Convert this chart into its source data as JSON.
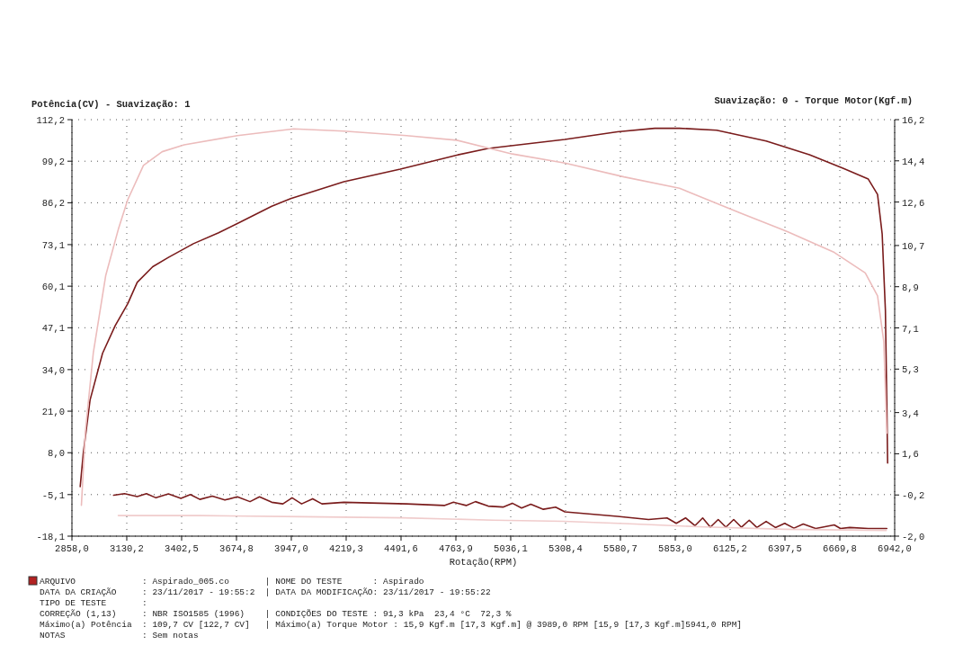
{
  "chart_data": {
    "type": "line",
    "ylabel": "Potência(CV) - Suavização: 1",
    "y2label": "Suavização: 0 - Torque Motor(Kgf.m)",
    "xlabel": "Rotação(RPM)",
    "xlim": [
      2858.0,
      6942.0
    ],
    "xticks": [
      {
        "value": 2858.0,
        "label": "2858,0"
      },
      {
        "value": 3130.2,
        "label": "3130,2"
      },
      {
        "value": 3402.5,
        "label": "3402,5"
      },
      {
        "value": 3674.8,
        "label": "3674,8"
      },
      {
        "value": 3947.0,
        "label": "3947,0"
      },
      {
        "value": 4219.3,
        "label": "4219,3"
      },
      {
        "value": 4491.6,
        "label": "4491,6"
      },
      {
        "value": 4763.9,
        "label": "4763,9"
      },
      {
        "value": 5036.1,
        "label": "5036,1"
      },
      {
        "value": 5308.4,
        "label": "5308,4"
      },
      {
        "value": 5580.7,
        "label": "5580,7"
      },
      {
        "value": 5853.0,
        "label": "5853,0"
      },
      {
        "value": 6125.2,
        "label": "6125,2"
      },
      {
        "value": 6397.5,
        "label": "6397,5"
      },
      {
        "value": 6669.8,
        "label": "6669,8"
      },
      {
        "value": 6942.0,
        "label": "6942,0"
      }
    ],
    "ylim": [
      -18.1,
      112.2
    ],
    "yticks": [
      {
        "value": -18.1,
        "label": "-18,1"
      },
      {
        "value": -5.1,
        "label": "-5,1"
      },
      {
        "value": 8.0,
        "label": "8,0"
      },
      {
        "value": 21.0,
        "label": "21,0"
      },
      {
        "value": 34.0,
        "label": "34,0"
      },
      {
        "value": 47.1,
        "label": "47,1"
      },
      {
        "value": 60.1,
        "label": "60,1"
      },
      {
        "value": 73.1,
        "label": "73,1"
      },
      {
        "value": 86.2,
        "label": "86,2"
      },
      {
        "value": 99.2,
        "label": "99,2"
      },
      {
        "value": 112.2,
        "label": "112,2"
      }
    ],
    "y2lim": [
      -2.0,
      16.2
    ],
    "y2ticks": [
      {
        "value": -2.0,
        "label": "-2,0"
      },
      {
        "value": -0.2,
        "label": "-0,2"
      },
      {
        "value": 1.6,
        "label": "1,6"
      },
      {
        "value": 3.4,
        "label": "3,4"
      },
      {
        "value": 5.3,
        "label": "5,3"
      },
      {
        "value": 7.1,
        "label": "7,1"
      },
      {
        "value": 8.9,
        "label": "8,9"
      },
      {
        "value": 10.7,
        "label": "10,7"
      },
      {
        "value": 12.6,
        "label": "12,6"
      },
      {
        "value": 14.4,
        "label": "14,4"
      },
      {
        "value": 16.2,
        "label": "16,2"
      }
    ],
    "grid": true,
    "line_style": "solid",
    "marker": "none",
    "series": [
      {
        "color": "#7a1c1c",
        "x": [
          2899,
          2914,
          2948,
          3010,
          3073,
          3135,
          3182,
          3259,
          3337,
          3461,
          3586,
          3679,
          3850,
          3944,
          4208,
          4488,
          4768,
          4924,
          5305,
          5566,
          5751,
          5874,
          6058,
          6304,
          6519,
          6688,
          6811,
          6857,
          6880,
          6896,
          6903,
          6907
        ],
        "values": [
          -2.6,
          7.6,
          24.5,
          39.1,
          47.8,
          54.6,
          61.3,
          66.2,
          69.1,
          73.4,
          76.8,
          79.7,
          85.1,
          87.5,
          92.8,
          96.7,
          101.1,
          103.2,
          106.0,
          108.4,
          109.5,
          109.5,
          108.9,
          105.5,
          101.2,
          96.9,
          93.6,
          88.8,
          76.4,
          52.5,
          23.9,
          4.8
        ]
      },
      {
        "color": "#ecbcbc",
        "axis": "y2",
        "x": [
          2905,
          2925,
          2964,
          3026,
          3088,
          3135,
          3213,
          3306,
          3415,
          3679,
          3959,
          4208,
          4519,
          4768,
          5044,
          5305,
          5598,
          5874,
          6181,
          6412,
          6642,
          6796,
          6857,
          6888,
          6903
        ],
        "values": [
          -0.65,
          2.6,
          6.0,
          9.4,
          11.4,
          12.7,
          14.2,
          14.8,
          15.1,
          15.5,
          15.8,
          15.7,
          15.5,
          15.3,
          14.7,
          14.3,
          13.7,
          13.2,
          12.1,
          11.3,
          10.4,
          9.5,
          8.5,
          6.5,
          2.5
        ]
      },
      {
        "color": "#7a1c1c",
        "x": [
          3065,
          3119,
          3182,
          3228,
          3275,
          3337,
          3399,
          3446,
          3493,
          3555,
          3617,
          3679,
          3742,
          3789,
          3850,
          3905,
          3951,
          3998,
          4053,
          4099,
          4208,
          4519,
          4706,
          4752,
          4815,
          4861,
          4924,
          4998,
          5044,
          5090,
          5136,
          5198,
          5259,
          5305,
          5566,
          5720,
          5812,
          5858,
          5904,
          5951,
          5989,
          6027,
          6066,
          6104,
          6143,
          6181,
          6220,
          6258,
          6304,
          6350,
          6396,
          6442,
          6488,
          6550,
          6642,
          6673,
          6719,
          6811,
          6903
        ],
        "values": [
          -5.3,
          -4.8,
          -5.7,
          -4.8,
          -6.1,
          -4.9,
          -6.3,
          -5.1,
          -6.6,
          -5.6,
          -6.8,
          -5.8,
          -7.3,
          -5.8,
          -7.5,
          -8.0,
          -6.1,
          -8.0,
          -6.4,
          -8.0,
          -7.5,
          -8.0,
          -8.5,
          -7.5,
          -8.5,
          -7.3,
          -8.7,
          -9.0,
          -7.8,
          -9.3,
          -8.1,
          -9.7,
          -9.0,
          -10.5,
          -11.9,
          -12.9,
          -12.4,
          -14.1,
          -12.4,
          -14.8,
          -12.4,
          -15.3,
          -12.9,
          -15.3,
          -12.9,
          -15.3,
          -13.1,
          -15.4,
          -13.5,
          -15.4,
          -14.1,
          -15.6,
          -14.3,
          -15.7,
          -14.6,
          -15.7,
          -15.4,
          -15.7,
          -15.7
        ]
      },
      {
        "color": "#f0cccc",
        "axis": "y2",
        "x": [
          3088,
          3500,
          4000,
          4500,
          4950,
          5300,
          5600,
          6000,
          6400,
          6900
        ],
        "values": [
          -1.1,
          -1.1,
          -1.15,
          -1.2,
          -1.3,
          -1.35,
          -1.45,
          -1.6,
          -1.7,
          -1.75
        ]
      }
    ],
    "annotations": [
      "ARQUIVO             : Aspirado_005.co       | NOME DO TESTE      : Aspirado",
      "DATA DA CRIAÇÃO     : 23/11/2017 - 19:55:2  | DATA DA MODIFICAÇÃO: 23/11/2017 - 19:55:22",
      "TIPO DE TESTE       :",
      "CORREÇÃO (1,13)     : NBR ISO1585 (1996)    | CONDIÇÕES DO TESTE : 91,3 kPa  23,4 °C  72,3 %",
      "Máximo(a) Potência  : 109,7 CV [122,7 CV]   | Máximo(a) Torque Motor : 15,9 Kgf.m [17,3 Kgf.m] @ 3989,0 RPM [15,9 [17,3 Kgf.m]5941,0 RPM]",
      "NOTAS               : Sem notas"
    ]
  }
}
